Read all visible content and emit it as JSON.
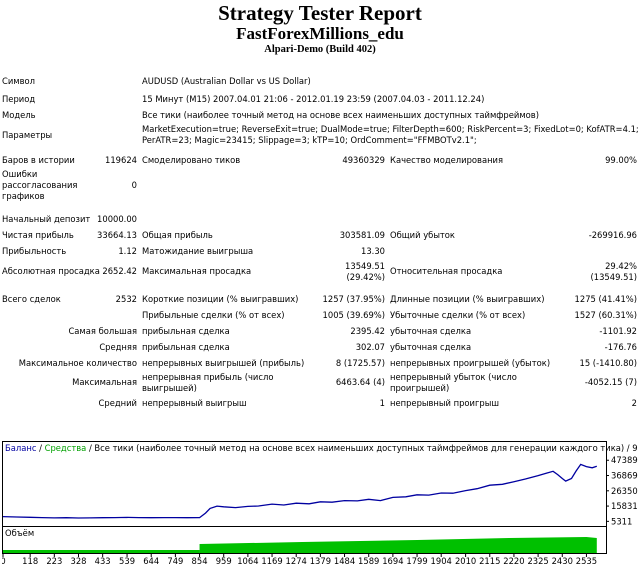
{
  "header": {
    "title": "Strategy Tester Report",
    "subtitle": "FastForexMillions_edu",
    "server": "Alpari-Demo (Build 402)"
  },
  "info": {
    "symbol_label": "Символ",
    "symbol": "AUDUSD (Australian Dollar vs US Dollar)",
    "period_label": "Период",
    "period": "15 Минут (M15) 2007.04.01 21:06 - 2012.01.19 23:59 (2007.04.03 - 2011.12.24)",
    "model_label": "Модель",
    "model": "Все тики (наиболее точный метод на основе всех наименьших доступных таймфреймов)",
    "params_label": "Параметры",
    "params_line1": "MarketExecution=true; ReverseExit=true; DualMode=true; FilterDepth=600; RiskPercent=3; FixedLot=0; KofATR=4.1;",
    "params_line2": "PerATR=23; Magic=23415; Slippage=3; kTP=10; OrdComment=\"FFMBOTv2.1\";"
  },
  "stats": {
    "bars_label": "Баров в истории",
    "bars": "119624",
    "ticks_label": "Смоделировано тиков",
    "ticks": "49360329",
    "quality_label": "Качество моделирования",
    "quality": "99.00%",
    "errors_label": "Ошибки рассогласования графиков",
    "errors": "0",
    "deposit_label": "Начальный депозит",
    "deposit": "10000.00",
    "net_profit_label": "Чистая прибыль",
    "net_profit": "33664.13",
    "gross_profit_label": "Общая прибыль",
    "gross_profit": "303581.09",
    "gross_loss_label": "Общий убыток",
    "gross_loss": "-269916.96",
    "profit_factor_label": "Прибыльность",
    "profit_factor": "1.12",
    "expected_payoff_label": "Матожидание выигрыша",
    "expected_payoff": "13.30",
    "abs_dd_label": "Абсолютная просадка",
    "abs_dd": "2652.42",
    "max_dd_label": "Максимальная просадка",
    "max_dd_1": "13549.51",
    "max_dd_2": "(29.42%)",
    "rel_dd_label": "Относительная просадка",
    "rel_dd_1": "29.42%",
    "rel_dd_2": "(13549.51)",
    "total_trades_label": "Всего сделок",
    "total_trades": "2532",
    "short_label": "Короткие позиции (% выигравших)",
    "short": "1257 (37.95%)",
    "long_label": "Длинные позиции (% выигравших)",
    "long": "1275 (41.41%)",
    "profit_trades_label": "Прибыльные сделки (% от всех)",
    "profit_trades": "1005 (39.69%)",
    "loss_trades_label": "Убыточные сделки (% от всех)",
    "loss_trades": "1527 (60.31%)",
    "largest_label": "Самая большая",
    "largest_profit_label": "прибыльная сделка",
    "largest_profit": "2395.42",
    "largest_loss_label": "убыточная сделка",
    "largest_loss": "-1101.92",
    "average_label": "Средняя",
    "average_profit_label": "прибыльная сделка",
    "average_profit": "302.07",
    "average_loss_label": "убыточная сделка",
    "average_loss": "-176.76",
    "max_count_label": "Максимальное количество",
    "max_cons_wins_label": "непрерывных выигрышей (прибыль)",
    "max_cons_wins": "8 (1725.57)",
    "max_cons_losses_label": "непрерывных проигрышей (убыток)",
    "max_cons_losses": "15 (-1410.80)",
    "maximal_label": "Максимальная",
    "max_cons_profit_label": "непрерывная прибыль (число выигрышей)",
    "max_cons_profit": "6463.64 (4)",
    "max_cons_loss_label": "непрерывный убыток (число проигрышей)",
    "max_cons_loss": "-4052.15 (7)",
    "avg_label": "Средний",
    "avg_cons_wins_label": "непрерывный выигрыш",
    "avg_cons_wins": "1",
    "avg_cons_losses_label": "непрерывный проигрыш",
    "avg_cons_losses": "2"
  },
  "chart_data": {
    "type": "line",
    "legend_balance": "Баланс",
    "legend_sep": " / ",
    "legend_equity": "Средства",
    "legend_rest": " / Все тики (наиболее точный метод на основе всех наименьших доступных таймфреймов для генерации каждого тика) / 99.00%",
    "volume_label": "Объём",
    "y_ticks": [
      47389,
      36869,
      26350,
      15831,
      5311
    ],
    "y_tick_labels": [
      "47389",
      "36869",
      "26350",
      "15831",
      "5311"
    ],
    "x_ticks": [
      0,
      118,
      223,
      328,
      433,
      539,
      644,
      749,
      854,
      959,
      1064,
      1169,
      1274,
      1379,
      1484,
      1589,
      1694,
      1799,
      1904,
      2010,
      2115,
      2220,
      2325,
      2430,
      2535
    ],
    "x_tick_labels": [
      "0",
      "118",
      "223",
      "328",
      "433",
      "539",
      "644",
      "749",
      "854",
      "959",
      "1064",
      "1169",
      "1274",
      "1379",
      "1484",
      "1589",
      "1694",
      "1799",
      "1904",
      "2010",
      "2115",
      "2220",
      "2325",
      "2430",
      "2535"
    ],
    "xlim": [
      0,
      2620
    ],
    "ylim": [
      2800,
      51000
    ],
    "balance_color": "#0000a0",
    "equity_color": "#00a000",
    "volume_color": "#00c000",
    "series": [
      {
        "name": "Баланс",
        "x": [
          0,
          60,
          118,
          170,
          223,
          275,
          328,
          380,
          433,
          486,
          539,
          590,
          644,
          700,
          749,
          800,
          854,
          880,
          900,
          930,
          959,
          1010,
          1064,
          1110,
          1169,
          1220,
          1274,
          1330,
          1379,
          1430,
          1484,
          1540,
          1589,
          1640,
          1694,
          1750,
          1799,
          1850,
          1904,
          1955,
          2010,
          2060,
          2115,
          2170,
          2220,
          2270,
          2325,
          2360,
          2390,
          2410,
          2430,
          2445,
          2470,
          2490,
          2510,
          2535,
          2560,
          2580
        ],
        "y": [
          8600,
          8300,
          8100,
          7900,
          7700,
          7800,
          7600,
          7700,
          7800,
          7900,
          8000,
          7900,
          7800,
          7900,
          7900,
          7800,
          7900,
          11000,
          14200,
          15800,
          15300,
          14800,
          15600,
          15900,
          17200,
          16600,
          17800,
          17400,
          18800,
          18500,
          19600,
          19400,
          20500,
          19600,
          21800,
          22200,
          23600,
          23400,
          24800,
          24700,
          26500,
          27800,
          30200,
          30800,
          32600,
          34500,
          36800,
          38500,
          39800,
          37500,
          34800,
          33000,
          34800,
          40000,
          44500,
          43000,
          42200,
          43300
        ]
      }
    ]
  }
}
